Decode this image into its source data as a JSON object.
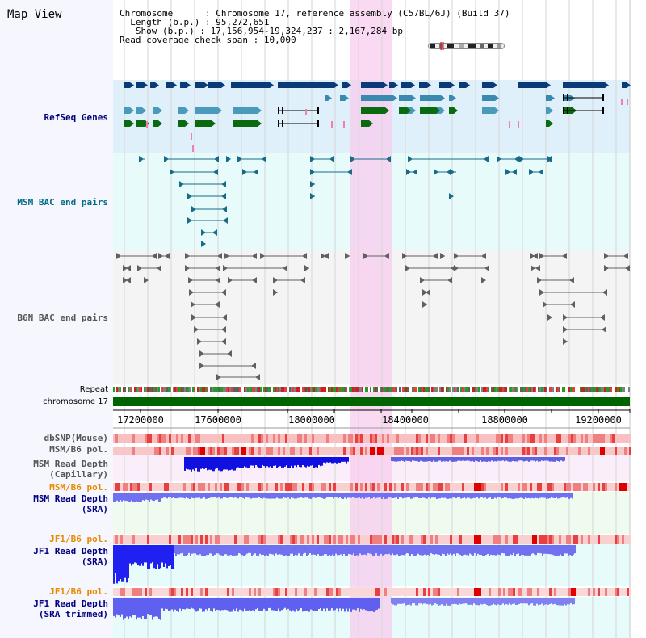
{
  "view_title": "Map View",
  "header": {
    "chromosome_label": "Chromosome",
    "chromosome_value": "Chromosome 17, reference assembly (C57BL/6J) (Build 37)",
    "length_label": "Length (b.p.)",
    "length_value": "95,272,651",
    "show_label": "Show (b.p.)",
    "show_value": "17,156,954-19,324,237 : 2,167,284 bp",
    "coverage_label": "Read coverage check span",
    "coverage_value": "10,000",
    "separator": ":"
  },
  "tracks": {
    "refseq": "RefSeq Genes",
    "msm_bac": "MSM BAC end pairs",
    "b6n_bac": "B6N BAC end pairs",
    "repeat": "Repeat",
    "chromosome": "chromosome 17",
    "dbsnp": "dbSNP(Mouse)",
    "msm_b6_pol_1": "MSM/B6 pol.",
    "msm_depth_cap_1": "MSM Read Depth",
    "msm_depth_cap_2": "(Capillary)",
    "msm_b6_pol_2": "MSM/B6 pol.",
    "msm_depth_sra_1": "MSM Read Depth",
    "msm_depth_sra_2": "(SRA)",
    "jf1_b6_pol_1": "JF1/B6 pol.",
    "jf1_depth_sra_1": "JF1 Read Depth",
    "jf1_depth_sra_2": "(SRA)",
    "jf1_b6_pol_2": "JF1/B6 pol.",
    "jf1_depth_trim_1": "JF1 Read Depth",
    "jf1_depth_trim_2": "(SRA trimmed)"
  },
  "axis": {
    "ticks": [
      "17200000",
      "17600000",
      "18000000",
      "18400000",
      "18800000",
      "19200000"
    ]
  },
  "colors": {
    "refseq_bg": "#dff0fa",
    "msm_bg": "#e6fbfa",
    "b6n_bg": "#f4f4f4",
    "highlight": "#f8ccee",
    "navy_gene": "#0a3a78",
    "mid_gene": "#4a9abb",
    "green_gene": "#0a6a10",
    "chrom_green": "#006400",
    "depth_blue": "#2020f0",
    "depth_light": "#8080f0",
    "pol_pink": "#f4b0b0"
  },
  "icons": {
    "ideogram": "chromosome-ideogram-icon"
  }
}
